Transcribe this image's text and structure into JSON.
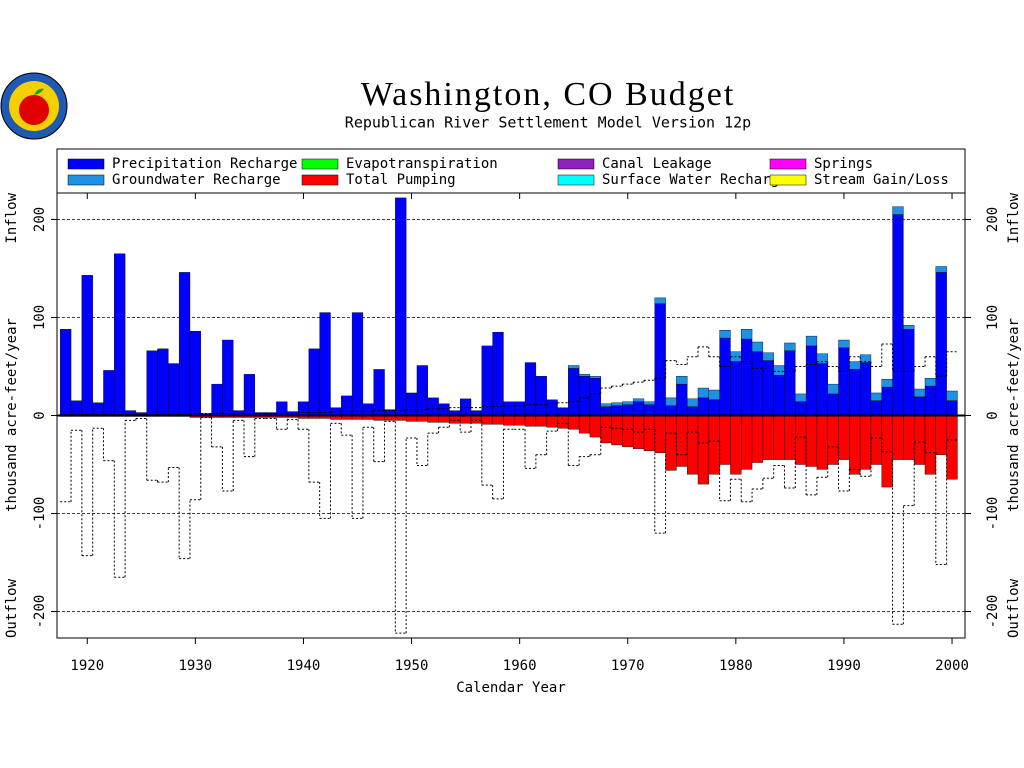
{
  "chart_data": {
    "type": "bar",
    "title": "Washington, CO Budget",
    "subtitle": "Republican River Settlement Model Version 12p",
    "x_label": "Calendar Year",
    "y_label": "thousand acre-feet/year",
    "inflow_label": "Inflow",
    "outflow_label": "Outflow",
    "x": [
      1918,
      1919,
      1920,
      1921,
      1922,
      1923,
      1924,
      1925,
      1926,
      1927,
      1928,
      1929,
      1930,
      1931,
      1932,
      1933,
      1934,
      1935,
      1936,
      1937,
      1938,
      1939,
      1940,
      1941,
      1942,
      1943,
      1944,
      1945,
      1946,
      1947,
      1948,
      1949,
      1950,
      1951,
      1952,
      1953,
      1954,
      1955,
      1956,
      1957,
      1958,
      1959,
      1960,
      1961,
      1962,
      1963,
      1964,
      1965,
      1966,
      1967,
      1968,
      1969,
      1970,
      1971,
      1972,
      1973,
      1974,
      1975,
      1976,
      1977,
      1978,
      1979,
      1980,
      1981,
      1982,
      1983,
      1984,
      1985,
      1986,
      1987,
      1988,
      1989,
      1990,
      1991,
      1992,
      1993,
      1994,
      1995,
      1996,
      1997,
      1998,
      1999,
      2000
    ],
    "series": [
      {
        "name": "Precipitation Recharge",
        "color": "#0000ff",
        "values": [
          88,
          15,
          143,
          13,
          46,
          165,
          5,
          3,
          66,
          68,
          53,
          146,
          86,
          2,
          32,
          77,
          5,
          42,
          3,
          3,
          14,
          4,
          14,
          68,
          105,
          8,
          20,
          105,
          12,
          47,
          6,
          222,
          23,
          51,
          18,
          12,
          5,
          17,
          5,
          71,
          85,
          14,
          14,
          54,
          40,
          16,
          8,
          48,
          40,
          38,
          9,
          10,
          11,
          14,
          11,
          114,
          10,
          32,
          9,
          18,
          16,
          79,
          55,
          78,
          65,
          56,
          41,
          66,
          14,
          71,
          53,
          22,
          69,
          47,
          54,
          15,
          29,
          205,
          88,
          19,
          30,
          146,
          15
        ]
      },
      {
        "name": "Groundwater Recharge",
        "color": "#1e90e6",
        "values": [
          0,
          0,
          0,
          0,
          0,
          0,
          0,
          0,
          0,
          0,
          0,
          0,
          0,
          0,
          0,
          0,
          0,
          0,
          0,
          0,
          0,
          0,
          0,
          0,
          0,
          0,
          0,
          0,
          0,
          0,
          0,
          0,
          0,
          0,
          0,
          0,
          0,
          0,
          0,
          0,
          0,
          0,
          0,
          0,
          0,
          0,
          0,
          3,
          2,
          2,
          3,
          3,
          3,
          3,
          3,
          6,
          8,
          8,
          8,
          10,
          10,
          8,
          10,
          10,
          10,
          8,
          10,
          8,
          8,
          10,
          10,
          10,
          8,
          8,
          8,
          8,
          8,
          8,
          4,
          8,
          8,
          6,
          10
        ]
      },
      {
        "name": "Evapotranspiration",
        "color": "#00ff00"
      },
      {
        "name": "Total Pumping",
        "color": "#ff0000",
        "values": [
          -1,
          -1,
          -1,
          -1,
          -1,
          -1,
          -1,
          -1,
          -1,
          -1,
          -1,
          -1,
          -2,
          -2,
          -2,
          -2,
          -2,
          -2,
          -2,
          -2,
          -2,
          -2,
          -3,
          -3,
          -3,
          -4,
          -4,
          -4,
          -4,
          -5,
          -5,
          -5,
          -6,
          -6,
          -7,
          -7,
          -8,
          -8,
          -8,
          -9,
          -9,
          -10,
          -10,
          -11,
          -11,
          -12,
          -13,
          -14,
          -18,
          -22,
          -28,
          -30,
          -32,
          -34,
          -36,
          -38,
          -56,
          -52,
          -60,
          -70,
          -60,
          -50,
          -60,
          -55,
          -48,
          -45,
          -45,
          -45,
          -50,
          -52,
          -55,
          -50,
          -45,
          -60,
          -55,
          -50,
          -73,
          -45,
          -45,
          -50,
          -60,
          -40,
          -65
        ]
      },
      {
        "name": "Canal Leakage",
        "color": "#9020c0"
      },
      {
        "name": "Surface Water Recharge",
        "color": "#00ffff"
      },
      {
        "name": "Springs",
        "color": "#ff00ff"
      },
      {
        "name": "Stream Gain/Loss",
        "color": "#ffff00"
      }
    ],
    "xlim": [
      1917.2,
      2001.2
    ],
    "xticks": [
      1920,
      1930,
      1940,
      1950,
      1960,
      1970,
      1980,
      1990,
      2000
    ],
    "ylim": [
      -227,
      227
    ],
    "yticks": [
      -200,
      -100,
      0,
      100,
      200
    ],
    "grid": true
  }
}
